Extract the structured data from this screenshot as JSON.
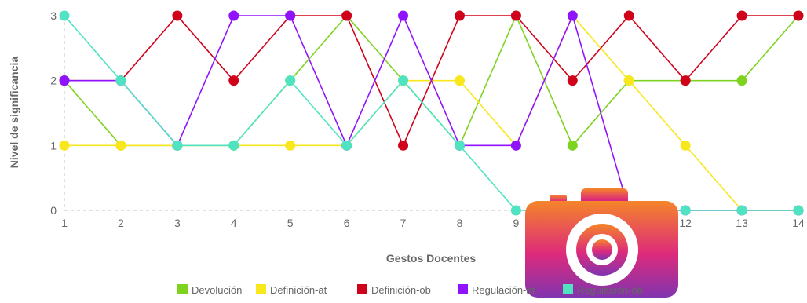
{
  "chart_data": {
    "type": "line",
    "xlabel": "Gestos Docentes",
    "ylabel": "Nivel de significancia",
    "x": [
      "1",
      "2",
      "3",
      "4",
      "5",
      "6",
      "7",
      "8",
      "9",
      "10",
      "11",
      "12",
      "13",
      "14"
    ],
    "yticks": [
      "0",
      "1",
      "2",
      "3"
    ],
    "ylim": [
      0,
      3
    ],
    "grid": "dashed axes only",
    "legend_position": "bottom-center",
    "series": [
      {
        "name": "Devolución",
        "color": "#7ed321",
        "values": [
          2,
          1,
          1,
          1,
          2,
          3,
          2,
          1,
          3,
          1,
          2,
          2,
          2,
          3
        ]
      },
      {
        "name": "Definición-at",
        "color": "#f8e71c",
        "values": [
          1,
          1,
          1,
          1,
          1,
          1,
          2,
          2,
          1,
          3,
          2,
          1,
          0,
          0
        ]
      },
      {
        "name": "Definición-ob",
        "color": "#d0021b",
        "values": [
          2,
          2,
          3,
          2,
          3,
          3,
          1,
          3,
          3,
          2,
          3,
          2,
          3,
          3
        ]
      },
      {
        "name": "Regulación-at",
        "color": "#9013fe",
        "values": [
          2,
          2,
          1,
          3,
          3,
          1,
          3,
          1,
          1,
          3,
          0,
          0,
          0,
          0
        ]
      },
      {
        "name": "Regulación-ob",
        "color": "#50e3c2",
        "values": [
          3,
          2,
          1,
          1,
          2,
          1,
          2,
          1,
          0,
          0,
          0,
          0,
          0,
          0
        ]
      }
    ]
  },
  "overlay": {
    "icon": "camera-icon",
    "colors": [
      "#f58529",
      "#dd2a7b",
      "#8134af"
    ]
  }
}
